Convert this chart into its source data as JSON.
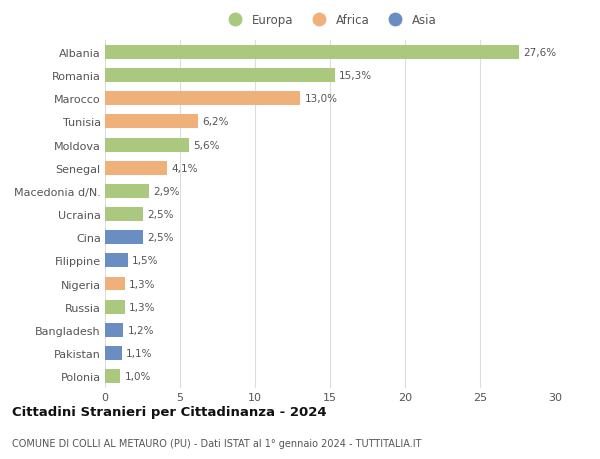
{
  "categories": [
    "Albania",
    "Romania",
    "Marocco",
    "Tunisia",
    "Moldova",
    "Senegal",
    "Macedonia d/N.",
    "Ucraina",
    "Cina",
    "Filippine",
    "Nigeria",
    "Russia",
    "Bangladesh",
    "Pakistan",
    "Polonia"
  ],
  "values": [
    27.6,
    15.3,
    13.0,
    6.2,
    5.6,
    4.1,
    2.9,
    2.5,
    2.5,
    1.5,
    1.3,
    1.3,
    1.2,
    1.1,
    1.0
  ],
  "labels": [
    "27,6%",
    "15,3%",
    "13,0%",
    "6,2%",
    "5,6%",
    "4,1%",
    "2,9%",
    "2,5%",
    "2,5%",
    "1,5%",
    "1,3%",
    "1,3%",
    "1,2%",
    "1,1%",
    "1,0%"
  ],
  "continents": [
    "Europa",
    "Europa",
    "Africa",
    "Africa",
    "Europa",
    "Africa",
    "Europa",
    "Europa",
    "Asia",
    "Asia",
    "Africa",
    "Europa",
    "Asia",
    "Asia",
    "Europa"
  ],
  "colors": {
    "Europa": "#aac97e",
    "Africa": "#f0b07a",
    "Asia": "#6b8ec2"
  },
  "title": "Cittadini Stranieri per Cittadinanza - 2024",
  "subtitle": "COMUNE DI COLLI AL METAURO (PU) - Dati ISTAT al 1° gennaio 2024 - TUTTITALIA.IT",
  "xlim": [
    0,
    30
  ],
  "xticks": [
    0,
    5,
    10,
    15,
    20,
    25,
    30
  ],
  "background_color": "#ffffff",
  "grid_color": "#dddddd"
}
